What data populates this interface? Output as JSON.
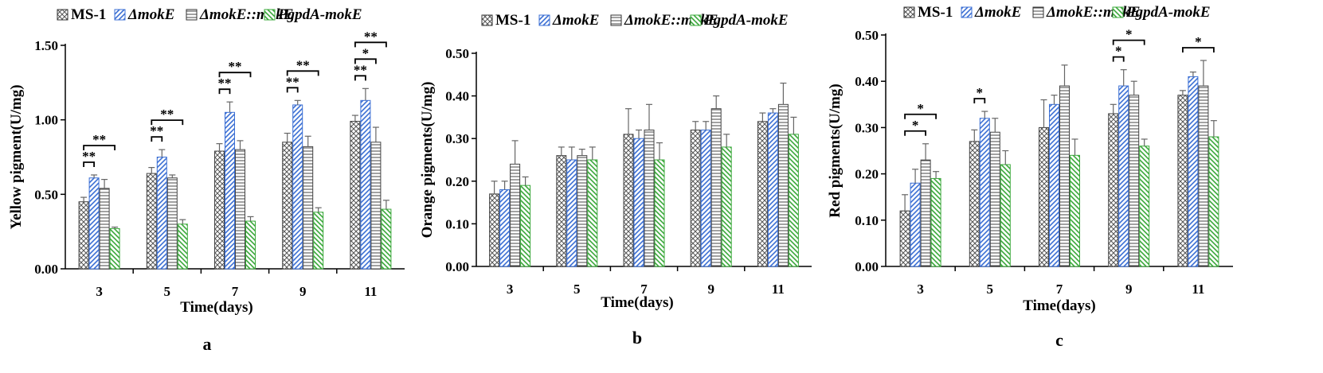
{
  "chart_data": [
    {
      "type": "bar",
      "panel_label": "a",
      "title": "",
      "xlabel": "Time(days)",
      "ylabel": "Yellow pigment(U/mg)",
      "ylim": [
        0,
        1.5
      ],
      "yticks": [
        "0.00",
        "0.50",
        "1.00",
        "1.50"
      ],
      "categories": [
        "3",
        "5",
        "7",
        "9",
        "11"
      ],
      "legend_position": "top",
      "series": [
        {
          "name": "MS-1",
          "italic": false,
          "pattern": "crosshatch",
          "color": "#555555",
          "values": [
            0.45,
            0.64,
            0.79,
            0.85,
            0.99
          ],
          "errors": [
            0.03,
            0.04,
            0.05,
            0.06,
            0.04
          ]
        },
        {
          "name": "ΔmokE",
          "italic": true,
          "pattern": "diag-right",
          "color": "#3b6fd4",
          "values": [
            0.61,
            0.75,
            1.05,
            1.1,
            1.13
          ],
          "errors": [
            0.02,
            0.05,
            0.07,
            0.03,
            0.08
          ]
        },
        {
          "name": "ΔmokE::mokE",
          "italic": true,
          "pattern": "horizontal",
          "color": "#555555",
          "values": [
            0.54,
            0.61,
            0.8,
            0.82,
            0.85
          ],
          "errors": [
            0.06,
            0.02,
            0.06,
            0.07,
            0.1
          ]
        },
        {
          "name": "PgpdA-mokE",
          "italic": true,
          "pattern": "diag-left",
          "color": "#3aa83a",
          "values": [
            0.27,
            0.3,
            0.32,
            0.38,
            0.4
          ],
          "errors": [
            0.01,
            0.03,
            0.03,
            0.03,
            0.06
          ]
        }
      ],
      "significance": [
        {
          "category": 0,
          "from": 0,
          "to": 1,
          "level": 1,
          "label": "**"
        },
        {
          "category": 0,
          "from": 0,
          "to": 3,
          "level": 2,
          "label": "**"
        },
        {
          "category": 1,
          "from": 0,
          "to": 1,
          "level": 1,
          "label": "**"
        },
        {
          "category": 1,
          "from": 0,
          "to": 3,
          "level": 2,
          "label": "**"
        },
        {
          "category": 2,
          "from": 0,
          "to": 1,
          "level": 1,
          "label": "**"
        },
        {
          "category": 2,
          "from": 0,
          "to": 3,
          "level": 2,
          "label": "**"
        },
        {
          "category": 3,
          "from": 0,
          "to": 1,
          "level": 1,
          "label": "**"
        },
        {
          "category": 3,
          "from": 0,
          "to": 3,
          "level": 2,
          "label": "**"
        },
        {
          "category": 4,
          "from": 0,
          "to": 1,
          "level": 1,
          "label": "**"
        },
        {
          "category": 4,
          "from": 0,
          "to": 2,
          "level": 2,
          "label": "*"
        },
        {
          "category": 4,
          "from": 0,
          "to": 3,
          "level": 3,
          "label": "**"
        }
      ]
    },
    {
      "type": "bar",
      "panel_label": "b",
      "title": "",
      "xlabel": "Time(days)",
      "ylabel": "Orange pigments(U/mg)",
      "ylim": [
        0,
        0.5
      ],
      "yticks": [
        "0.00",
        "0.10",
        "0.20",
        "0.30",
        "0.40",
        "0.50"
      ],
      "categories": [
        "3",
        "5",
        "7",
        "9",
        "11"
      ],
      "legend_position": "top",
      "series": [
        {
          "name": "MS-1",
          "italic": false,
          "pattern": "crosshatch",
          "color": "#555555",
          "values": [
            0.17,
            0.26,
            0.31,
            0.32,
            0.34
          ],
          "errors": [
            0.03,
            0.02,
            0.06,
            0.02,
            0.02
          ]
        },
        {
          "name": "ΔmokE",
          "italic": true,
          "pattern": "diag-right",
          "color": "#3b6fd4",
          "values": [
            0.18,
            0.25,
            0.3,
            0.32,
            0.36
          ],
          "errors": [
            0.02,
            0.03,
            0.02,
            0.02,
            0.01
          ]
        },
        {
          "name": "ΔmokE::mokE",
          "italic": true,
          "pattern": "horizontal",
          "color": "#555555",
          "values": [
            0.24,
            0.26,
            0.32,
            0.37,
            0.38
          ],
          "errors": [
            0.055,
            0.015,
            0.06,
            0.03,
            0.05
          ]
        },
        {
          "name": "PgpdA-mokE",
          "italic": true,
          "pattern": "diag-left",
          "color": "#3aa83a",
          "values": [
            0.19,
            0.25,
            0.25,
            0.28,
            0.31
          ],
          "errors": [
            0.02,
            0.03,
            0.04,
            0.03,
            0.04
          ]
        }
      ],
      "significance": []
    },
    {
      "type": "bar",
      "panel_label": "c",
      "title": "",
      "xlabel": "Time(days)",
      "ylabel": "Red pigments(U/mg)",
      "ylim": [
        0,
        0.5
      ],
      "yticks": [
        "0.00",
        "0.10",
        "0.20",
        "0.30",
        "0.40",
        "0.50"
      ],
      "categories": [
        "3",
        "5",
        "7",
        "9",
        "11"
      ],
      "legend_position": "top",
      "series": [
        {
          "name": "MS-1",
          "italic": false,
          "pattern": "crosshatch",
          "color": "#555555",
          "values": [
            0.12,
            0.27,
            0.3,
            0.33,
            0.37
          ],
          "errors": [
            0.035,
            0.025,
            0.06,
            0.02,
            0.01
          ]
        },
        {
          "name": "ΔmokE",
          "italic": true,
          "pattern": "diag-right",
          "color": "#3b6fd4",
          "values": [
            0.18,
            0.32,
            0.35,
            0.39,
            0.41
          ],
          "errors": [
            0.03,
            0.015,
            0.02,
            0.035,
            0.01
          ]
        },
        {
          "name": "ΔmokE::mokE",
          "italic": true,
          "pattern": "horizontal",
          "color": "#555555",
          "values": [
            0.23,
            0.29,
            0.39,
            0.37,
            0.39
          ],
          "errors": [
            0.035,
            0.03,
            0.045,
            0.03,
            0.055
          ]
        },
        {
          "name": "PgpdA-mokE",
          "italic": true,
          "pattern": "diag-left",
          "color": "#3aa83a",
          "values": [
            0.19,
            0.22,
            0.24,
            0.26,
            0.28
          ],
          "errors": [
            0.015,
            0.03,
            0.035,
            0.015,
            0.035
          ]
        }
      ],
      "significance": [
        {
          "category": 0,
          "from": 0,
          "to": 2,
          "level": 1,
          "label": "*"
        },
        {
          "category": 0,
          "from": 0,
          "to": 3,
          "level": 2,
          "label": "*"
        },
        {
          "category": 1,
          "from": 0,
          "to": 1,
          "level": 1,
          "label": "*"
        },
        {
          "category": 3,
          "from": 0,
          "to": 1,
          "level": 1,
          "label": "*"
        },
        {
          "category": 3,
          "from": 0,
          "to": 3,
          "level": 2,
          "label": "*"
        },
        {
          "category": 4,
          "from": 0,
          "to": 3,
          "level": 1,
          "label": "*"
        }
      ]
    }
  ]
}
